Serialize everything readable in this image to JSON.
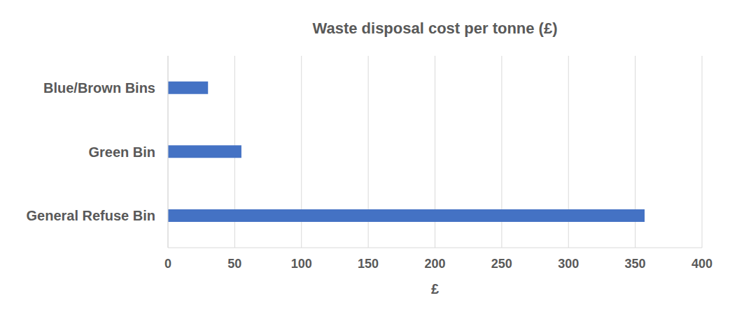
{
  "chart_data": {
    "type": "bar",
    "title": "Waste disposal cost per tonne (£)",
    "orientation": "horizontal",
    "categories": [
      "Blue/Brown Bins",
      "Green Bin",
      "General Refuse Bin"
    ],
    "values": [
      30,
      55,
      357
    ],
    "color": "#4472c4",
    "xlabel": "£",
    "xlim": [
      0,
      400
    ],
    "xticks": [
      0,
      50,
      100,
      150,
      200,
      250,
      300,
      350,
      400
    ],
    "grid": true
  }
}
